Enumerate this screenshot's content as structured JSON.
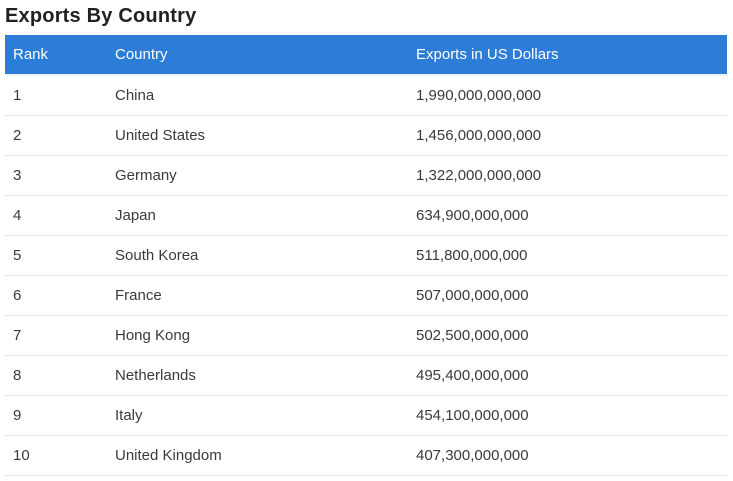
{
  "page_title": "Exports By Country",
  "table": {
    "headers": [
      "Rank",
      "Country",
      "Exports in US Dollars"
    ],
    "rows": [
      [
        "1",
        "China",
        "1,990,000,000,000"
      ],
      [
        "2",
        "United States",
        "1,456,000,000,000"
      ],
      [
        "3",
        "Germany",
        "1,322,000,000,000"
      ],
      [
        "4",
        "Japan",
        "634,900,000,000"
      ],
      [
        "5",
        "South Korea",
        "511,800,000,000"
      ],
      [
        "6",
        "France",
        "507,000,000,000"
      ],
      [
        "7",
        "Hong Kong",
        "502,500,000,000"
      ],
      [
        "8",
        "Netherlands",
        "495,400,000,000"
      ],
      [
        "9",
        "Italy",
        "454,100,000,000"
      ],
      [
        "10",
        "United Kingdom",
        "407,300,000,000"
      ]
    ]
  },
  "colors": {
    "header_bg": "#2b7dd8",
    "header_text": "#ffffff",
    "body_text": "#3a3a3a",
    "row_border": "#dde3e9",
    "title_text": "#212121"
  }
}
